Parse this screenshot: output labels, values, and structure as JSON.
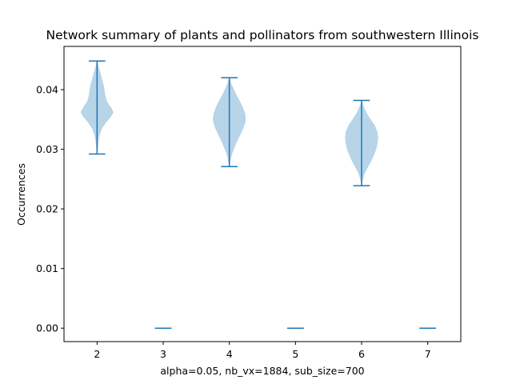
{
  "chart_data": {
    "type": "violin",
    "title": "Network summary of plants and pollinators from southwestern Illinois",
    "xlabel": "alpha=0.05, nb_vx=1884, sub_size=700",
    "ylabel": "Occurrences",
    "xlim": [
      1.5,
      7.5
    ],
    "ylim": [
      -0.00225,
      0.04725
    ],
    "xticks": [
      2,
      3,
      4,
      5,
      6,
      7
    ],
    "yticks": [
      0.0,
      0.01,
      0.02,
      0.03,
      0.04
    ],
    "ytick_labels": [
      "0.00",
      "0.01",
      "0.02",
      "0.03",
      "0.04"
    ],
    "grid": false,
    "colors": {
      "body": "#b7d4e8",
      "line": "#1f77b4"
    },
    "violins": [
      {
        "x": 2,
        "min": 0.0292,
        "max": 0.0448,
        "profile": [
          [
            0.0292,
            0.02
          ],
          [
            0.0297,
            0.03
          ],
          [
            0.0305,
            0.06
          ],
          [
            0.0315,
            0.1
          ],
          [
            0.0325,
            0.17
          ],
          [
            0.0335,
            0.3
          ],
          [
            0.0345,
            0.55
          ],
          [
            0.0355,
            0.85
          ],
          [
            0.0362,
            1.0
          ],
          [
            0.037,
            0.85
          ],
          [
            0.038,
            0.6
          ],
          [
            0.039,
            0.5
          ],
          [
            0.04,
            0.45
          ],
          [
            0.041,
            0.38
          ],
          [
            0.042,
            0.28
          ],
          [
            0.043,
            0.18
          ],
          [
            0.044,
            0.08
          ],
          [
            0.0448,
            0.02
          ]
        ]
      },
      {
        "x": 3,
        "min": 0.0,
        "max": 0.0,
        "profile": []
      },
      {
        "x": 4,
        "min": 0.0271,
        "max": 0.042,
        "profile": [
          [
            0.0271,
            0.02
          ],
          [
            0.0276,
            0.04
          ],
          [
            0.0285,
            0.1
          ],
          [
            0.0295,
            0.2
          ],
          [
            0.0305,
            0.35
          ],
          [
            0.0315,
            0.5
          ],
          [
            0.0325,
            0.68
          ],
          [
            0.0335,
            0.85
          ],
          [
            0.0345,
            0.97
          ],
          [
            0.0352,
            1.0
          ],
          [
            0.036,
            0.95
          ],
          [
            0.037,
            0.82
          ],
          [
            0.038,
            0.65
          ],
          [
            0.039,
            0.45
          ],
          [
            0.04,
            0.28
          ],
          [
            0.041,
            0.12
          ],
          [
            0.042,
            0.02
          ]
        ]
      },
      {
        "x": 5,
        "min": 0.0,
        "max": 0.0,
        "profile": []
      },
      {
        "x": 6,
        "min": 0.0239,
        "max": 0.0382,
        "profile": [
          [
            0.0239,
            0.02
          ],
          [
            0.0244,
            0.04
          ],
          [
            0.0252,
            0.1
          ],
          [
            0.026,
            0.2
          ],
          [
            0.027,
            0.38
          ],
          [
            0.028,
            0.58
          ],
          [
            0.029,
            0.75
          ],
          [
            0.03,
            0.88
          ],
          [
            0.031,
            0.97
          ],
          [
            0.032,
            1.0
          ],
          [
            0.033,
            0.95
          ],
          [
            0.034,
            0.8
          ],
          [
            0.035,
            0.55
          ],
          [
            0.036,
            0.32
          ],
          [
            0.037,
            0.15
          ],
          [
            0.0378,
            0.05
          ],
          [
            0.0382,
            0.02
          ]
        ]
      },
      {
        "x": 7,
        "min": 0.0,
        "max": 0.0,
        "profile": []
      }
    ]
  }
}
